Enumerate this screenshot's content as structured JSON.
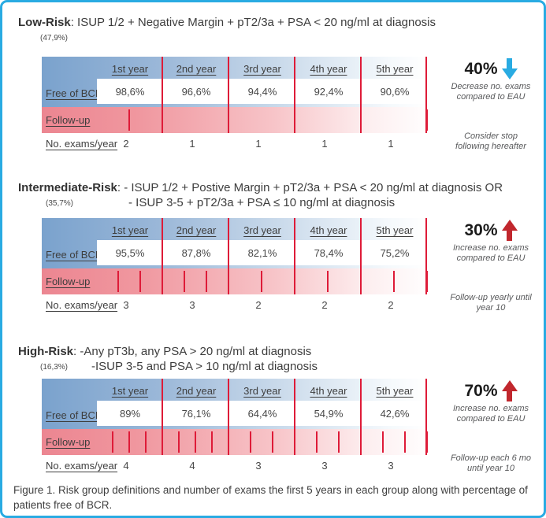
{
  "frame": {
    "border_color": "#29abe2"
  },
  "columns": [
    "1st year",
    "2nd year",
    "3rd year",
    "4th year",
    "5th year"
  ],
  "row_labels": {
    "free_of_bcr": "Free of BCR",
    "follow_up": "Follow-up",
    "exams": "No. exams/year"
  },
  "sections": [
    {
      "name": "Low-Risk",
      "prevalence": "(47,9%)",
      "definition_line1": ": ISUP 1/2 + Negative Margin + pT2/3a + PSA < 20 ng/ml at diagnosis",
      "definition_line2": "",
      "free_of_bcr": [
        "98,6%",
        "96,6%",
        "94,4%",
        "92,4%",
        "90,6%"
      ],
      "exams_per_year": [
        "2",
        "1",
        "1",
        "1",
        "1"
      ],
      "change": {
        "value": "40%",
        "direction": "down",
        "color": "#29abe2",
        "note_lines": [
          "Decrease no. exams",
          "compared to EAU"
        ],
        "footnote_lines": [
          "Consider stop",
          "following hereafter"
        ]
      }
    },
    {
      "name": "Intermediate-Risk",
      "prevalence": "(35,7%)",
      "definition_line1": ": - ISUP 1/2 + Postive Margin + pT2/3a + PSA < 20 ng/ml at diagnosis OR",
      "definition_line2": "- ISUP 3-5 + pT2/3a + PSA ≤ 10 ng/ml at diagnosis",
      "free_of_bcr": [
        "95,5%",
        "87,8%",
        "82,1%",
        "78,4%",
        "75,2%"
      ],
      "exams_per_year": [
        "3",
        "3",
        "2",
        "2",
        "2"
      ],
      "change": {
        "value": "30%",
        "direction": "up",
        "color": "#c1272d",
        "note_lines": [
          "Increase no. exams",
          "compared to EAU"
        ],
        "footnote_lines": [
          "Follow-up yearly until",
          "year 10"
        ]
      }
    },
    {
      "name": "High-Risk",
      "prevalence": "(16,3%)",
      "definition_line1": ": -Any pT3b, any PSA > 20 ng/ml at diagnosis",
      "definition_line2": "-ISUP 3-5 and PSA > 10 ng/ml at diagnosis",
      "free_of_bcr": [
        "89%",
        "76,1%",
        "64,4%",
        "54,9%",
        "42,6%"
      ],
      "exams_per_year": [
        "4",
        "4",
        "3",
        "3",
        "3"
      ],
      "change": {
        "value": "70%",
        "direction": "up",
        "color": "#c1272d",
        "note_lines": [
          "Increase no. exams",
          "compared to EAU"
        ],
        "footnote_lines": [
          "Follow-up each 6 mo",
          "until year 10"
        ]
      }
    }
  ],
  "caption": "Figure 1. Risk group definitions and number of exams the first 5 years in each group along with percentage of patients free of BCR.",
  "chart_data": {
    "type": "table",
    "categories": [
      "1st year",
      "2nd year",
      "3rd year",
      "4th year",
      "5th year"
    ],
    "series": [
      {
        "name": "Low-Risk free of BCR (%)",
        "values": [
          98.6,
          96.6,
          94.4,
          92.4,
          90.6
        ]
      },
      {
        "name": "Low-Risk exams/year",
        "values": [
          2,
          1,
          1,
          1,
          1
        ]
      },
      {
        "name": "Intermediate-Risk free of BCR (%)",
        "values": [
          95.5,
          87.8,
          82.1,
          78.4,
          75.2
        ]
      },
      {
        "name": "Intermediate-Risk exams/year",
        "values": [
          3,
          3,
          2,
          2,
          2
        ]
      },
      {
        "name": "High-Risk free of BCR (%)",
        "values": [
          89,
          76.1,
          64.4,
          54.9,
          42.6
        ]
      },
      {
        "name": "High-Risk exams/year",
        "values": [
          4,
          4,
          3,
          3,
          3
        ]
      }
    ],
    "title": "Figure 1. Risk group definitions and number of exams the first 5 years in each group along with percentage of patients free of BCR."
  }
}
